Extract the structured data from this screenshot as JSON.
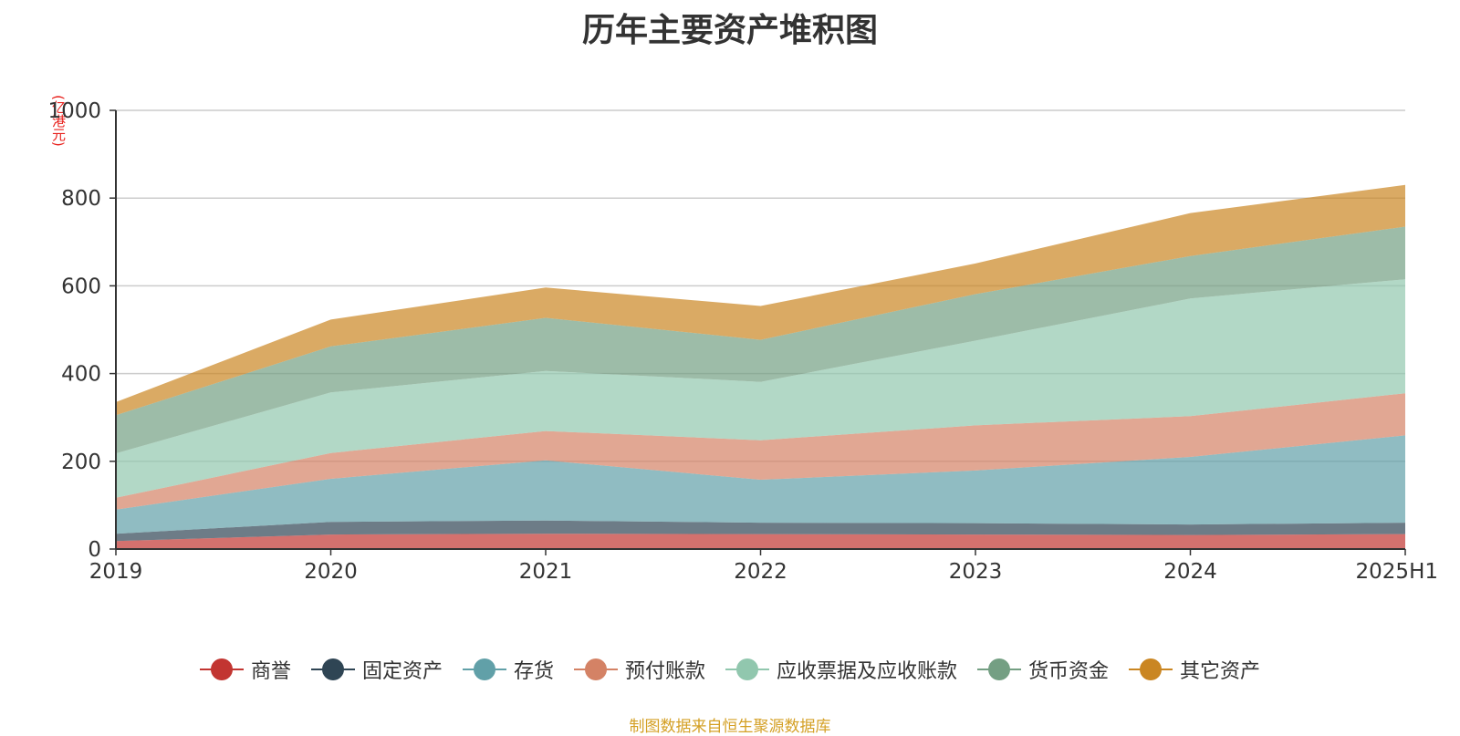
{
  "chart_data": {
    "type": "area",
    "stacked": true,
    "title": "历年主要资产堆积图",
    "ylabel": "(亿港元)",
    "xlabel": "",
    "categories": [
      "2019",
      "2020",
      "2021",
      "2022",
      "2023",
      "2024",
      "2025H1"
    ],
    "ylim": [
      0,
      1000
    ],
    "yticks": [
      0,
      200,
      400,
      600,
      800,
      "1000"
    ],
    "grid": true,
    "legend_position": "bottom",
    "series": [
      {
        "name": "商誉",
        "color": "#c23531",
        "values": [
          18,
          33,
          35,
          34,
          33,
          32,
          34
        ]
      },
      {
        "name": "固定资产",
        "color": "#2f4554",
        "values": [
          17,
          29,
          30,
          26,
          26,
          24,
          26
        ]
      },
      {
        "name": "存货",
        "color": "#61a0a8",
        "values": [
          55,
          98,
          137,
          98,
          120,
          154,
          199
        ]
      },
      {
        "name": "预付账款",
        "color": "#d48265",
        "values": [
          27,
          59,
          67,
          90,
          103,
          93,
          96
        ]
      },
      {
        "name": "应收票据及应收账款",
        "color": "#91c7ae",
        "values": [
          101,
          138,
          137,
          133,
          193,
          268,
          260
        ]
      },
      {
        "name": "货币资金",
        "color": "#749f83",
        "values": [
          87,
          105,
          121,
          96,
          106,
          97,
          120
        ]
      },
      {
        "name": "其它资产",
        "color": "#ca8622",
        "values": [
          30,
          61,
          69,
          77,
          70,
          98,
          95
        ]
      }
    ]
  },
  "source_text": "制图数据来自恒生聚源数据库"
}
